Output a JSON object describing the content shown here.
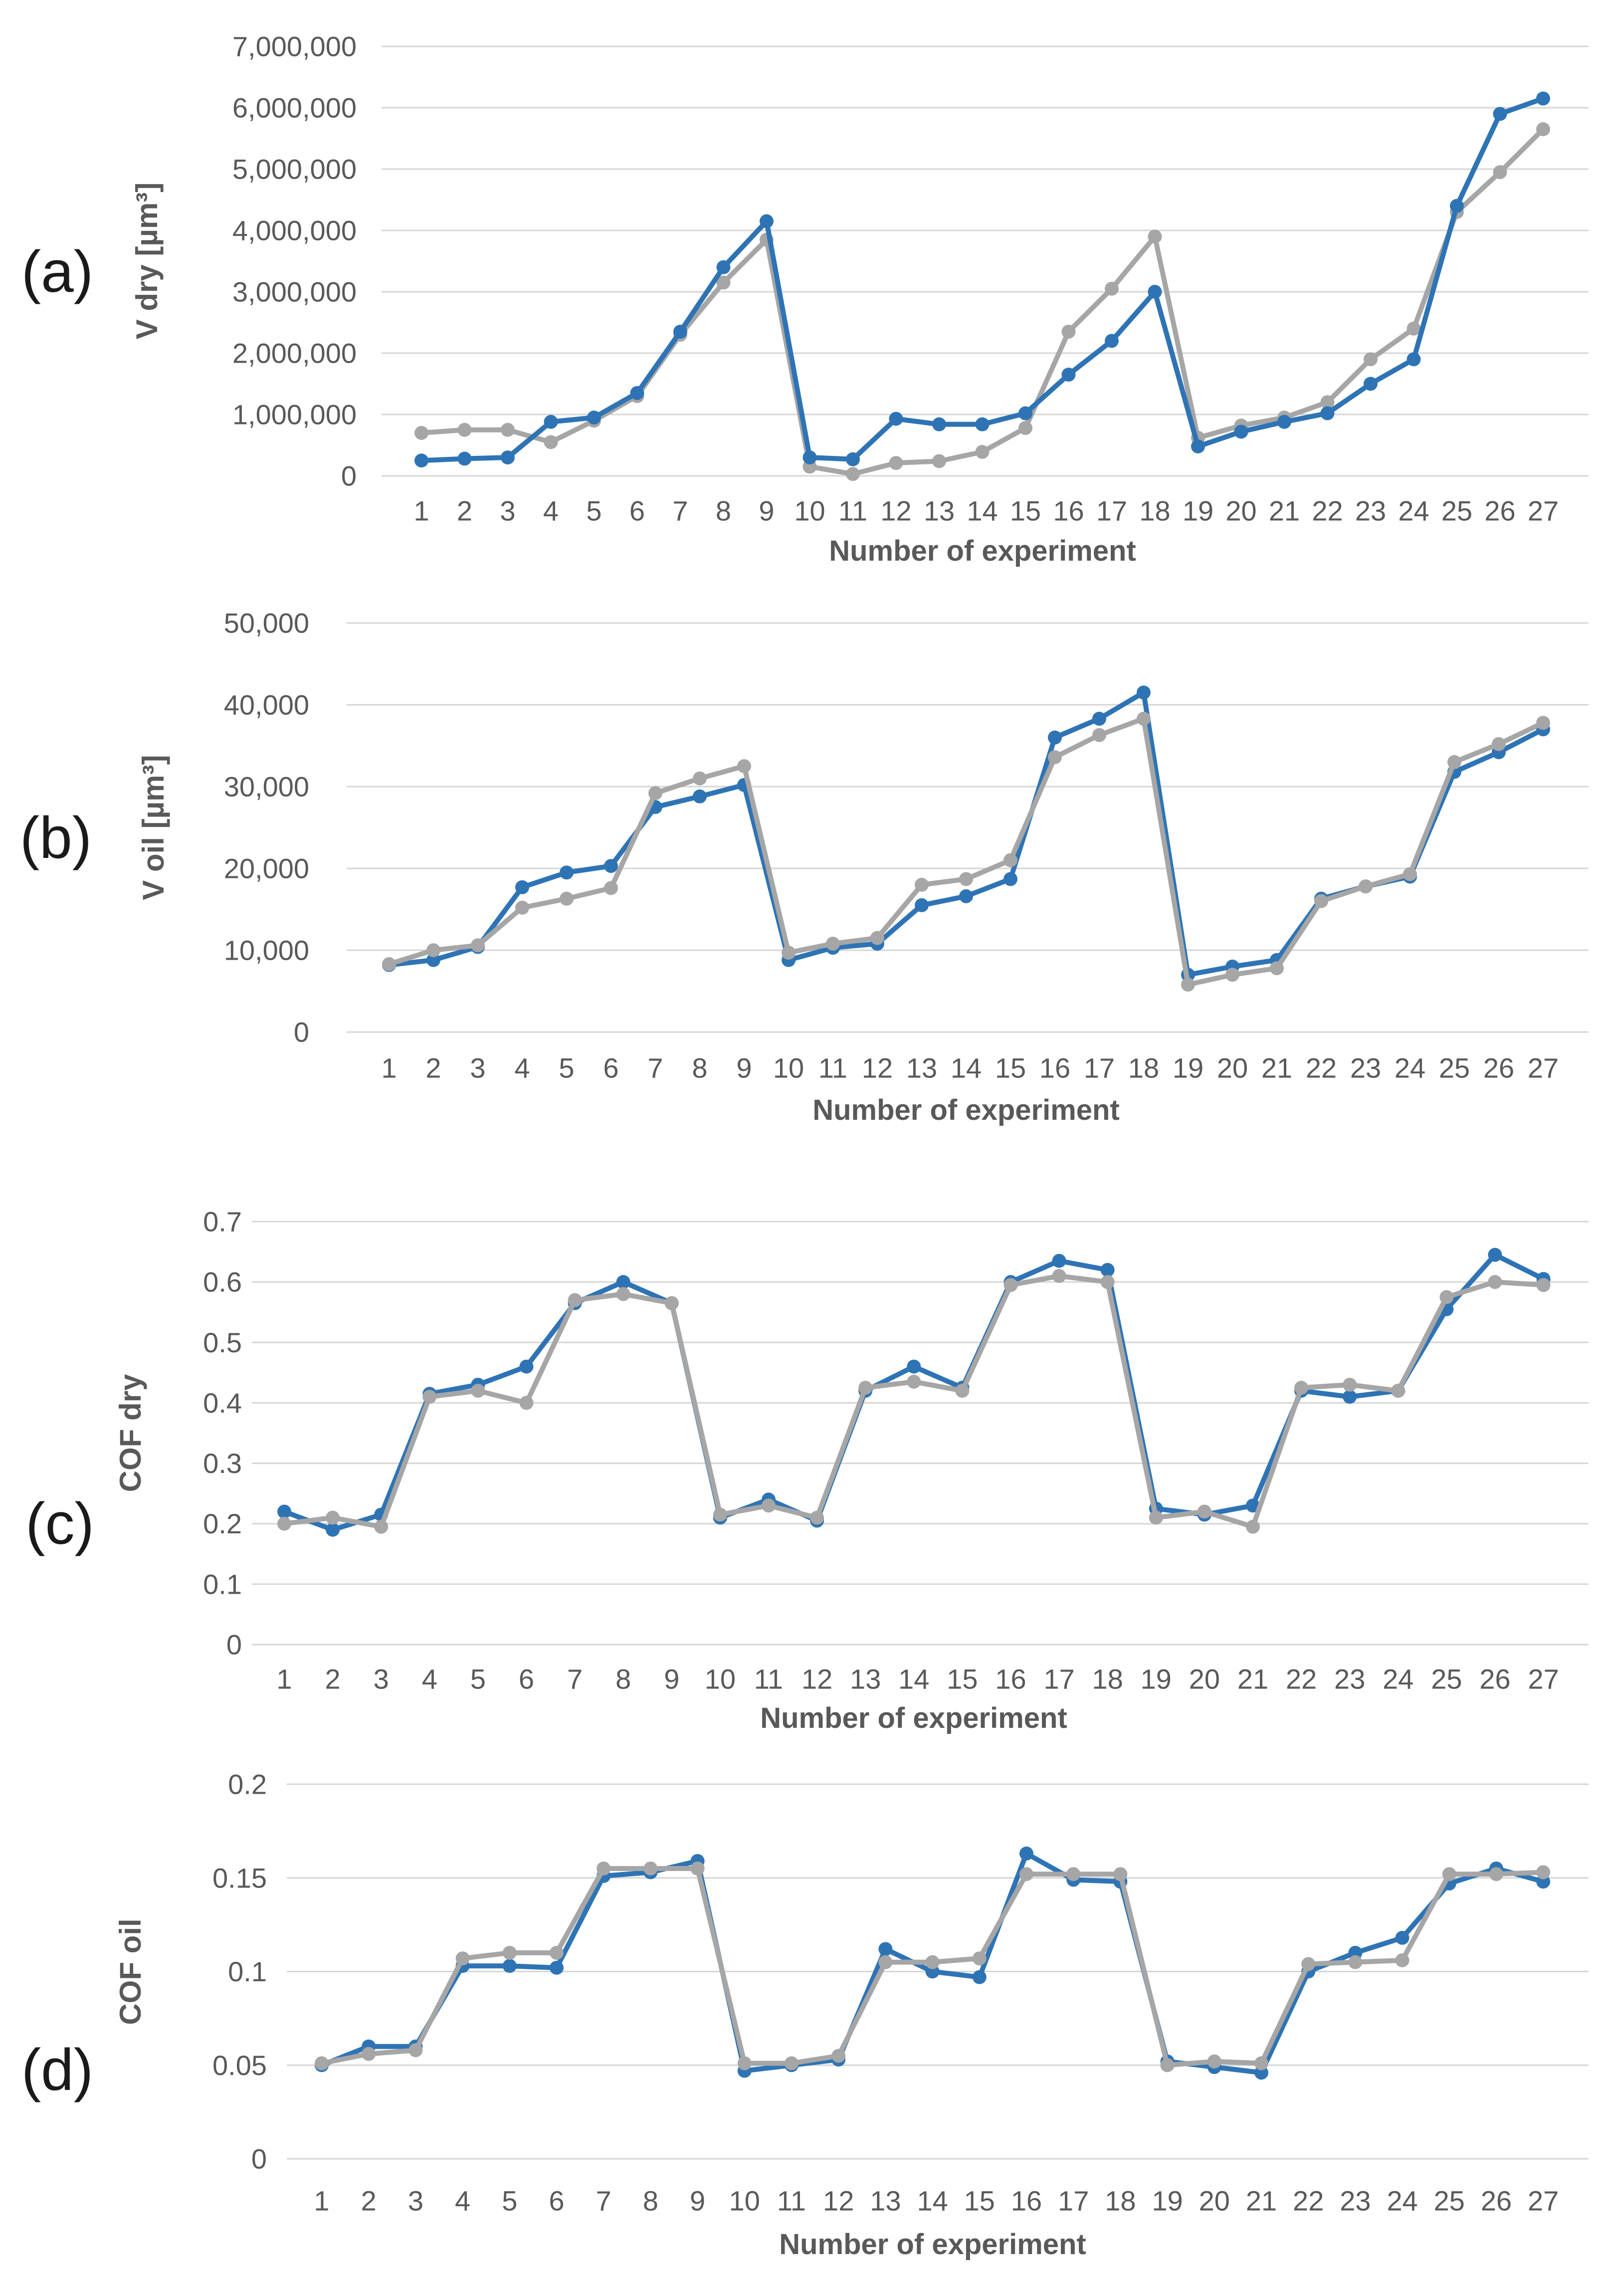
{
  "colors": {
    "series_blue": "#2E74B5",
    "series_gray": "#A6A6A6",
    "gridline": "#D6D6D6",
    "tick_text": "#595959",
    "axis_title_text": "#595959",
    "panel_letter_text": "#1a1a1a"
  },
  "chart_data": [
    {
      "panel_label": "(a)",
      "type": "line",
      "title": "",
      "ylabel": "V dry [µm³]",
      "xlabel": "Number of experiment",
      "categories": [
        1,
        2,
        3,
        4,
        5,
        6,
        7,
        8,
        9,
        10,
        11,
        12,
        13,
        14,
        15,
        16,
        17,
        18,
        19,
        20,
        21,
        22,
        23,
        24,
        25,
        26,
        27
      ],
      "ylim": [
        0,
        7000000
      ],
      "ytick_labels": [
        "0",
        "1,000,000",
        "2,000,000",
        "3,000,000",
        "4,000,000",
        "5,000,000",
        "6,000,000",
        "7,000,000"
      ],
      "grid": "horizontal",
      "legend": "none",
      "series": [
        {
          "name": "blue",
          "values": [
            250000,
            280000,
            300000,
            880000,
            950000,
            1350000,
            2350000,
            3400000,
            4150000,
            300000,
            270000,
            930000,
            840000,
            840000,
            1020000,
            1650000,
            2200000,
            3000000,
            480000,
            720000,
            880000,
            1020000,
            1500000,
            1900000,
            4400000,
            5900000,
            6150000
          ]
        },
        {
          "name": "gray",
          "values": [
            700000,
            750000,
            750000,
            550000,
            900000,
            1300000,
            2300000,
            3150000,
            3850000,
            150000,
            30000,
            210000,
            240000,
            390000,
            780000,
            2350000,
            3050000,
            3900000,
            620000,
            820000,
            950000,
            1200000,
            1900000,
            2400000,
            4300000,
            4950000,
            5650000
          ]
        }
      ]
    },
    {
      "panel_label": "(b)",
      "type": "line",
      "title": "",
      "ylabel": "V oil [µm³]",
      "xlabel": "Number of experiment",
      "categories": [
        1,
        2,
        3,
        4,
        5,
        6,
        7,
        8,
        9,
        10,
        11,
        12,
        13,
        14,
        15,
        16,
        17,
        18,
        19,
        20,
        21,
        22,
        23,
        24,
        25,
        26,
        27
      ],
      "ylim": [
        0,
        50000
      ],
      "ytick_labels": [
        "0",
        "10,000",
        "20,000",
        "30,000",
        "40,000",
        "50,000"
      ],
      "grid": "horizontal",
      "legend": "none",
      "series": [
        {
          "name": "blue",
          "values": [
            8200,
            8800,
            10400,
            17700,
            19500,
            20300,
            27500,
            28800,
            30200,
            8800,
            10300,
            10800,
            15500,
            16600,
            18700,
            36000,
            38300,
            41500,
            7000,
            8000,
            8800,
            16300,
            17800,
            19000,
            31800,
            34200,
            37000
          ]
        },
        {
          "name": "gray",
          "values": [
            8300,
            10000,
            10600,
            15200,
            16300,
            17600,
            29200,
            31000,
            32500,
            9700,
            10800,
            11500,
            18000,
            18700,
            21000,
            33600,
            36300,
            38300,
            5800,
            7000,
            7800,
            16000,
            17800,
            19300,
            33000,
            35200,
            37800
          ]
        }
      ]
    },
    {
      "panel_label": "(c)",
      "type": "line",
      "title": "",
      "ylabel": "COF dry",
      "xlabel": "Number of experiment",
      "categories": [
        1,
        2,
        3,
        4,
        5,
        6,
        7,
        8,
        9,
        10,
        11,
        12,
        13,
        14,
        15,
        16,
        17,
        18,
        19,
        20,
        21,
        22,
        23,
        24,
        25,
        26,
        27
      ],
      "ylim": [
        0,
        0.7
      ],
      "ytick_labels": [
        "0",
        "0.1",
        "0.2",
        "0.3",
        "0.4",
        "0.5",
        "0.6",
        "0.7"
      ],
      "grid": "horizontal",
      "legend": "none",
      "series": [
        {
          "name": "blue",
          "values": [
            0.22,
            0.19,
            0.215,
            0.415,
            0.43,
            0.46,
            0.565,
            0.6,
            0.565,
            0.21,
            0.24,
            0.205,
            0.42,
            0.46,
            0.425,
            0.6,
            0.635,
            0.62,
            0.225,
            0.215,
            0.23,
            0.42,
            0.41,
            0.42,
            0.555,
            0.645,
            0.605
          ]
        },
        {
          "name": "gray",
          "values": [
            0.2,
            0.21,
            0.195,
            0.41,
            0.42,
            0.4,
            0.57,
            0.58,
            0.565,
            0.215,
            0.23,
            0.21,
            0.425,
            0.435,
            0.42,
            0.595,
            0.61,
            0.6,
            0.21,
            0.22,
            0.195,
            0.425,
            0.43,
            0.42,
            0.575,
            0.6,
            0.595
          ]
        }
      ]
    },
    {
      "panel_label": "(d)",
      "type": "line",
      "title": "",
      "ylabel": "COF oil",
      "xlabel": "Number of experiment",
      "categories": [
        1,
        2,
        3,
        4,
        5,
        6,
        7,
        8,
        9,
        10,
        11,
        12,
        13,
        14,
        15,
        16,
        17,
        18,
        19,
        20,
        21,
        22,
        23,
        24,
        25,
        26,
        27
      ],
      "ylim": [
        0,
        0.2
      ],
      "ytick_labels": [
        "0",
        "0.05",
        "0.1",
        "0.15",
        "0.2"
      ],
      "grid": "horizontal",
      "legend": "none",
      "series": [
        {
          "name": "blue",
          "values": [
            0.05,
            0.06,
            0.06,
            0.103,
            0.103,
            0.102,
            0.151,
            0.153,
            0.159,
            0.047,
            0.05,
            0.053,
            0.112,
            0.1,
            0.097,
            0.163,
            0.149,
            0.148,
            0.052,
            0.049,
            0.046,
            0.1,
            0.11,
            0.118,
            0.147,
            0.155,
            0.148
          ]
        },
        {
          "name": "gray",
          "values": [
            0.051,
            0.056,
            0.058,
            0.107,
            0.11,
            0.11,
            0.155,
            0.155,
            0.155,
            0.051,
            0.051,
            0.055,
            0.105,
            0.105,
            0.107,
            0.152,
            0.152,
            0.152,
            0.05,
            0.052,
            0.051,
            0.104,
            0.105,
            0.106,
            0.152,
            0.152,
            0.153
          ]
        }
      ]
    }
  ]
}
